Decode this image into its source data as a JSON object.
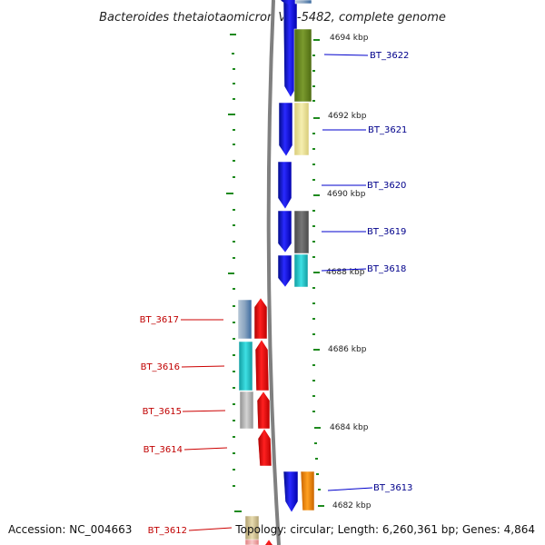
{
  "title": "Bacteroides thetaiotaomicron VPI-5482, complete genome",
  "accession": "Accession: NC_004663",
  "summary": "Topology: circular; Length: 6,260,361 bp; Genes: 4,864",
  "colors": {
    "forward_strand": "#1010ee",
    "reverse_strand": "#ee1010",
    "backbone": "#808080",
    "ticks": "#1f8a1f",
    "right_label": "#00008b",
    "left_label": "#c00000"
  },
  "scale": {
    "unit": "kbp",
    "labels": [
      "4694 kbp",
      "4692 kbp",
      "4690 kbp",
      "4688 kbp",
      "4686 kbp",
      "4684 kbp",
      "4682 kbp"
    ]
  },
  "genes_right": [
    {
      "name": "BT_3622",
      "cog_color": "#6b8e23"
    },
    {
      "name": "BT_3621",
      "cog_color": "#eee39a"
    },
    {
      "name": "BT_3620",
      "cog_color": ""
    },
    {
      "name": "BT_3619",
      "cog_color": "#6e6e6e"
    },
    {
      "name": "BT_3618",
      "cog_color": "#20c8cc"
    },
    {
      "name": "BT_3613",
      "cog_color": "#ff8c00"
    }
  ],
  "genes_left": [
    {
      "name": "BT_3617",
      "cog_color": "#9fb6cc"
    },
    {
      "name": "BT_3616",
      "cog_color": "#20c8cc"
    },
    {
      "name": "BT_3615",
      "cog_color": "#bdbdbd"
    },
    {
      "name": "BT_3614",
      "cog_color": ""
    },
    {
      "name": "BT_3612",
      "cog_color": "#d9c9a0"
    }
  ]
}
